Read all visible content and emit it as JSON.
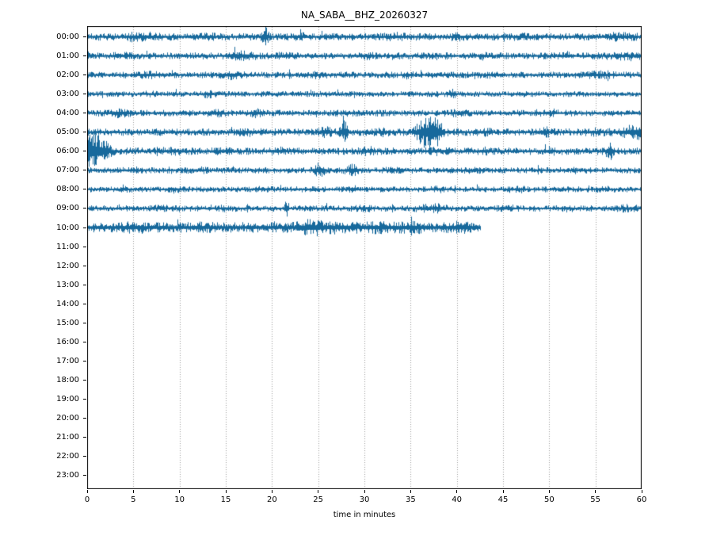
{
  "title": "NA_SABA__BHZ_20260327",
  "chart_data": {
    "type": "line",
    "subtype": "seismogram-dayplot-helicorder",
    "title": "NA_SABA__BHZ_20260327",
    "xlabel": "time in minutes",
    "xlim": [
      0,
      60
    ],
    "x_ticks": [
      0,
      5,
      10,
      15,
      20,
      25,
      30,
      35,
      40,
      45,
      50,
      55,
      60
    ],
    "y_tick_labels": [
      "00:00",
      "01:00",
      "02:00",
      "03:00",
      "04:00",
      "05:00",
      "06:00",
      "07:00",
      "08:00",
      "09:00",
      "10:00",
      "11:00",
      "12:00",
      "13:00",
      "14:00",
      "15:00",
      "16:00",
      "17:00",
      "18:00",
      "19:00",
      "20:00",
      "21:00",
      "22:00",
      "23:00"
    ],
    "grid": {
      "vertical_dotted": true,
      "color": "#9b9b9b",
      "positions_min": [
        5,
        10,
        15,
        20,
        25,
        30,
        35,
        40,
        45,
        50,
        55
      ]
    },
    "legend": "none",
    "trace_color": "#17699c",
    "axis_color": "#000000",
    "amplitude_model": "base_amp is relative noise band half-amplitude; bursts are gaussian envelope events at minute t with width w (minutes) and relative amplitude a",
    "rows": [
      {
        "hour": "00:00",
        "has_data": true,
        "start_min": 0,
        "end_min": 60,
        "base_amp": 1.0,
        "bursts": [
          {
            "t": 6.2,
            "w": 1.2,
            "a": 1.5
          },
          {
            "t": 13,
            "w": 0.6,
            "a": 1.35
          },
          {
            "t": 19.3,
            "w": 0.22,
            "a": 2.9
          },
          {
            "t": 23,
            "w": 0.8,
            "a": 1.3
          },
          {
            "t": 33.5,
            "w": 0.8,
            "a": 1.35
          },
          {
            "t": 40,
            "w": 0.5,
            "a": 1.3
          },
          {
            "t": 47,
            "w": 0.6,
            "a": 1.3
          },
          {
            "t": 57.5,
            "w": 1.2,
            "a": 1.4
          }
        ]
      },
      {
        "hour": "01:00",
        "has_data": true,
        "start_min": 0,
        "end_min": 60,
        "base_amp": 0.95,
        "bursts": [
          {
            "t": 4,
            "w": 0.7,
            "a": 1.3
          },
          {
            "t": 16.8,
            "w": 0.9,
            "a": 1.75
          },
          {
            "t": 21.5,
            "w": 0.5,
            "a": 1.4
          },
          {
            "t": 30,
            "w": 0.6,
            "a": 1.3
          },
          {
            "t": 43,
            "w": 0.5,
            "a": 1.35
          },
          {
            "t": 52,
            "w": 0.3,
            "a": 1.6
          },
          {
            "t": 58,
            "w": 0.8,
            "a": 1.35
          }
        ]
      },
      {
        "hour": "02:00",
        "has_data": true,
        "start_min": 0,
        "end_min": 60,
        "base_amp": 0.9,
        "bursts": [
          {
            "t": 6.5,
            "w": 0.8,
            "a": 1.45
          },
          {
            "t": 15.5,
            "w": 0.7,
            "a": 1.6
          },
          {
            "t": 25,
            "w": 0.5,
            "a": 1.35
          },
          {
            "t": 34.7,
            "w": 0.3,
            "a": 1.7
          },
          {
            "t": 44,
            "w": 0.6,
            "a": 1.3
          },
          {
            "t": 55.5,
            "w": 1.0,
            "a": 1.5
          }
        ]
      },
      {
        "hour": "03:00",
        "has_data": true,
        "start_min": 0,
        "end_min": 60,
        "base_amp": 0.8,
        "bursts": [
          {
            "t": 7,
            "w": 0.6,
            "a": 1.3
          },
          {
            "t": 13.2,
            "w": 0.5,
            "a": 1.5
          },
          {
            "t": 26,
            "w": 0.5,
            "a": 1.3
          },
          {
            "t": 39.5,
            "w": 0.3,
            "a": 1.9
          },
          {
            "t": 47,
            "w": 0.5,
            "a": 1.4
          }
        ]
      },
      {
        "hour": "04:00",
        "has_data": true,
        "start_min": 0,
        "end_min": 60,
        "base_amp": 0.9,
        "bursts": [
          {
            "t": 3.5,
            "w": 0.9,
            "a": 1.55
          },
          {
            "t": 14,
            "w": 0.5,
            "a": 1.5
          },
          {
            "t": 18.5,
            "w": 0.6,
            "a": 1.6
          },
          {
            "t": 28,
            "w": 0.6,
            "a": 1.3
          },
          {
            "t": 40,
            "w": 0.5,
            "a": 1.35
          },
          {
            "t": 50,
            "w": 0.6,
            "a": 1.3
          }
        ]
      },
      {
        "hour": "05:00",
        "has_data": true,
        "start_min": 0,
        "end_min": 60,
        "base_amp": 1.0,
        "bursts": [
          {
            "t": 18,
            "w": 1.0,
            "a": 1.35
          },
          {
            "t": 25.9,
            "w": 0.45,
            "a": 1.8
          },
          {
            "t": 27.8,
            "w": 0.28,
            "a": 3.4
          },
          {
            "t": 32,
            "w": 0.6,
            "a": 1.4
          },
          {
            "t": 36.7,
            "w": 0.7,
            "a": 4.6
          },
          {
            "t": 37.9,
            "w": 0.45,
            "a": 3.6
          },
          {
            "t": 43,
            "w": 0.5,
            "a": 1.4
          },
          {
            "t": 49.5,
            "w": 0.4,
            "a": 1.9
          },
          {
            "t": 55,
            "w": 0.6,
            "a": 1.4
          },
          {
            "t": 59.2,
            "w": 1.1,
            "a": 2.3
          }
        ]
      },
      {
        "hour": "06:00",
        "has_data": true,
        "start_min": 0,
        "end_min": 60,
        "base_amp": 1.0,
        "bursts": [
          {
            "t": 0.6,
            "w": 0.7,
            "a": 5.6
          },
          {
            "t": 1.8,
            "w": 0.5,
            "a": 2.8
          },
          {
            "t": 9,
            "w": 0.8,
            "a": 1.35
          },
          {
            "t": 15,
            "w": 0.6,
            "a": 1.3
          },
          {
            "t": 20.5,
            "w": 0.6,
            "a": 1.45
          },
          {
            "t": 30.5,
            "w": 0.5,
            "a": 1.5
          },
          {
            "t": 38,
            "w": 0.6,
            "a": 1.35
          },
          {
            "t": 43,
            "w": 0.5,
            "a": 1.45
          },
          {
            "t": 50,
            "w": 0.4,
            "a": 1.5
          },
          {
            "t": 56.6,
            "w": 0.28,
            "a": 2.9
          }
        ]
      },
      {
        "hour": "07:00",
        "has_data": true,
        "start_min": 0,
        "end_min": 60,
        "base_amp": 0.85,
        "bursts": [
          {
            "t": 5,
            "w": 0.6,
            "a": 1.3
          },
          {
            "t": 12,
            "w": 0.7,
            "a": 1.3
          },
          {
            "t": 25.2,
            "w": 0.4,
            "a": 2.7
          },
          {
            "t": 28.7,
            "w": 0.5,
            "a": 2.3
          },
          {
            "t": 33,
            "w": 0.6,
            "a": 1.45
          },
          {
            "t": 42,
            "w": 0.6,
            "a": 1.3
          },
          {
            "t": 53,
            "w": 0.6,
            "a": 1.3
          }
        ]
      },
      {
        "hour": "08:00",
        "has_data": true,
        "start_min": 0,
        "end_min": 60,
        "base_amp": 0.8,
        "bursts": [
          {
            "t": 4,
            "w": 0.6,
            "a": 1.3
          },
          {
            "t": 9.5,
            "w": 0.4,
            "a": 1.45
          },
          {
            "t": 19,
            "w": 0.6,
            "a": 1.3
          },
          {
            "t": 28.9,
            "w": 0.22,
            "a": 1.9
          },
          {
            "t": 38,
            "w": 0.7,
            "a": 1.35
          },
          {
            "t": 47,
            "w": 0.5,
            "a": 1.35
          },
          {
            "t": 56,
            "w": 0.6,
            "a": 1.3
          }
        ]
      },
      {
        "hour": "09:00",
        "has_data": true,
        "start_min": 0,
        "end_min": 60,
        "base_amp": 0.85,
        "bursts": [
          {
            "t": 8,
            "w": 0.7,
            "a": 1.3
          },
          {
            "t": 15,
            "w": 0.6,
            "a": 1.3
          },
          {
            "t": 21.6,
            "w": 0.13,
            "a": 4.2
          },
          {
            "t": 30,
            "w": 0.6,
            "a": 1.3
          },
          {
            "t": 37.6,
            "w": 1.1,
            "a": 1.75
          },
          {
            "t": 45.5,
            "w": 0.6,
            "a": 1.45
          },
          {
            "t": 52,
            "w": 0.5,
            "a": 1.3
          },
          {
            "t": 58.5,
            "w": 0.7,
            "a": 1.5
          }
        ]
      },
      {
        "hour": "10:00",
        "has_data": true,
        "start_min": 0,
        "end_min": 42.6,
        "base_amp": 1.45,
        "bursts": [
          {
            "t": 5,
            "w": 0.8,
            "a": 1.2
          },
          {
            "t": 12,
            "w": 0.7,
            "a": 1.2
          },
          {
            "t": 24.4,
            "w": 0.9,
            "a": 1.8
          },
          {
            "t": 27.2,
            "w": 0.7,
            "a": 1.4
          },
          {
            "t": 31.5,
            "w": 0.9,
            "a": 1.3
          },
          {
            "t": 35.2,
            "w": 0.9,
            "a": 1.35
          },
          {
            "t": 40.5,
            "w": 0.9,
            "a": 1.3
          }
        ]
      },
      {
        "hour": "11:00",
        "has_data": false
      },
      {
        "hour": "12:00",
        "has_data": false
      },
      {
        "hour": "13:00",
        "has_data": false
      },
      {
        "hour": "14:00",
        "has_data": false
      },
      {
        "hour": "15:00",
        "has_data": false
      },
      {
        "hour": "16:00",
        "has_data": false
      },
      {
        "hour": "17:00",
        "has_data": false
      },
      {
        "hour": "18:00",
        "has_data": false
      },
      {
        "hour": "19:00",
        "has_data": false
      },
      {
        "hour": "20:00",
        "has_data": false
      },
      {
        "hour": "21:00",
        "has_data": false
      },
      {
        "hour": "22:00",
        "has_data": false
      },
      {
        "hour": "23:00",
        "has_data": false
      }
    ]
  }
}
